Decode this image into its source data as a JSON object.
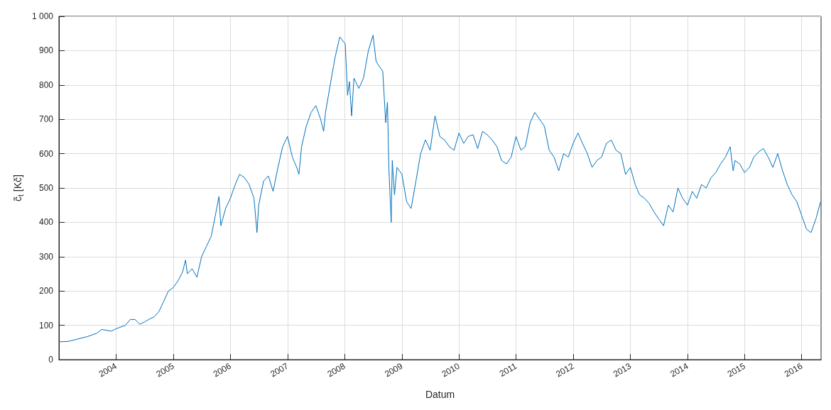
{
  "chart_data": {
    "type": "line",
    "xlabel": "Datum",
    "ylabel": "c̃$_{t}$ [Kč]",
    "xlim": [
      "2003-01-01",
      "2016-05-04"
    ],
    "xticks": [
      "2004",
      "2005",
      "2006",
      "2007",
      "2008",
      "2009",
      "2010",
      "2011",
      "2012",
      "2013",
      "2014",
      "2015",
      "2016"
    ],
    "ylim": [
      0,
      1000
    ],
    "yticks": [
      0,
      100,
      200,
      300,
      400,
      500,
      600,
      700,
      800,
      900,
      {
        "value": 1000,
        "label": "1 000"
      }
    ],
    "grid": true,
    "line_style": "solid",
    "marker": "none",
    "series": [
      {
        "color": "#0072bd",
        "x": [
          "2003-01-01",
          "2003-03",
          "2003-05",
          "2003-07",
          "2003-09",
          "2003-10",
          "2003-12",
          "2004-01",
          "2004-03",
          "2004-04",
          "2004-05",
          "2004-06",
          "2004-07",
          "2004-08",
          "2004-09",
          "2004-10",
          "2004-11",
          "2004-12",
          "2005-01",
          "2005-02",
          "2005-03",
          "2005-03-20",
          "2005-04",
          "2005-05",
          "2005-06",
          "2005-07",
          "2005-08",
          "2005-09",
          "2005-10",
          "2005-10-20",
          "2005-11",
          "2005-12",
          "2006-01",
          "2006-02",
          "2006-03",
          "2006-04",
          "2006-05",
          "2006-06",
          "2006-06-20",
          "2006-07",
          "2006-08",
          "2006-09",
          "2006-10",
          "2006-11",
          "2006-12",
          "2007-01",
          "2007-02",
          "2007-03",
          "2007-03-15",
          "2007-04",
          "2007-05",
          "2007-06",
          "2007-07",
          "2007-08",
          "2007-08-20",
          "2007-09",
          "2007-10",
          "2007-11",
          "2007-12",
          "2008-01-05",
          "2008-01-20",
          "2008-02",
          "2008-02-15",
          "2008-03",
          "2008-04",
          "2008-05",
          "2008-06",
          "2008-07",
          "2008-07-20",
          "2008-08",
          "2008-09",
          "2008-09-20",
          "2008-10",
          "2008-10-10",
          "2008-10-25",
          "2008-11",
          "2008-11-15",
          "2008-12",
          "2009-01",
          "2009-02",
          "2009-03",
          "2009-04",
          "2009-05",
          "2009-06",
          "2009-07",
          "2009-08",
          "2009-09",
          "2009-10",
          "2009-11",
          "2009-12",
          "2010-01",
          "2010-02",
          "2010-03",
          "2010-04",
          "2010-05",
          "2010-06",
          "2010-07",
          "2010-08",
          "2010-09",
          "2010-10",
          "2010-11",
          "2010-12",
          "2011-01",
          "2011-02",
          "2011-03",
          "2011-04",
          "2011-05",
          "2011-06",
          "2011-07",
          "2011-08",
          "2011-09",
          "2011-10",
          "2011-11",
          "2011-12",
          "2012-01",
          "2012-02",
          "2012-03",
          "2012-04",
          "2012-05",
          "2012-06",
          "2012-07",
          "2012-08",
          "2012-09",
          "2012-10",
          "2012-11",
          "2012-12",
          "2013-01",
          "2013-02",
          "2013-03",
          "2013-04",
          "2013-05",
          "2013-06",
          "2013-07",
          "2013-08",
          "2013-09",
          "2013-10",
          "2013-11",
          "2013-12",
          "2014-01",
          "2014-02",
          "2014-03",
          "2014-04",
          "2014-05",
          "2014-06",
          "2014-07",
          "2014-08",
          "2014-09",
          "2014-10",
          "2014-10-20",
          "2014-11",
          "2014-12",
          "2015-01",
          "2015-02",
          "2015-03",
          "2015-04",
          "2015-05",
          "2015-06",
          "2015-07",
          "2015-08",
          "2015-09",
          "2015-10",
          "2015-11",
          "2015-12",
          "2016-01",
          "2016-02",
          "2016-03",
          "2016-04",
          "2016-05-01"
        ],
        "values": [
          52,
          53,
          60,
          67,
          77,
          88,
          83,
          90,
          100,
          117,
          117,
          103,
          110,
          118,
          125,
          140,
          170,
          200,
          210,
          230,
          255,
          290,
          250,
          265,
          240,
          300,
          330,
          360,
          430,
          475,
          390,
          440,
          470,
          510,
          540,
          530,
          510,
          470,
          370,
          450,
          520,
          535,
          490,
          560,
          620,
          650,
          590,
          560,
          540,
          620,
          680,
          720,
          740,
          700,
          665,
          720,
          800,
          880,
          940,
          920,
          770,
          810,
          710,
          820,
          790,
          820,
          900,
          945,
          870,
          860,
          840,
          690,
          750,
          560,
          400,
          580,
          480,
          560,
          540,
          460,
          440,
          520,
          600,
          640,
          610,
          710,
          650,
          640,
          620,
          610,
          660,
          630,
          650,
          655,
          615,
          665,
          655,
          640,
          620,
          580,
          570,
          590,
          650,
          610,
          620,
          690,
          720,
          700,
          680,
          610,
          590,
          550,
          600,
          590,
          630,
          660,
          630,
          600,
          560,
          580,
          590,
          630,
          640,
          610,
          600,
          540,
          560,
          510,
          480,
          470,
          455,
          430,
          410,
          390,
          450,
          430,
          500,
          470,
          450,
          490,
          470,
          510,
          500,
          530,
          545,
          570,
          590,
          620,
          550,
          580,
          570,
          545,
          560,
          590,
          605,
          615,
          590,
          560,
          600,
          550,
          510,
          480,
          460,
          420,
          380,
          370,
          410,
          460
        ]
      }
    ]
  }
}
